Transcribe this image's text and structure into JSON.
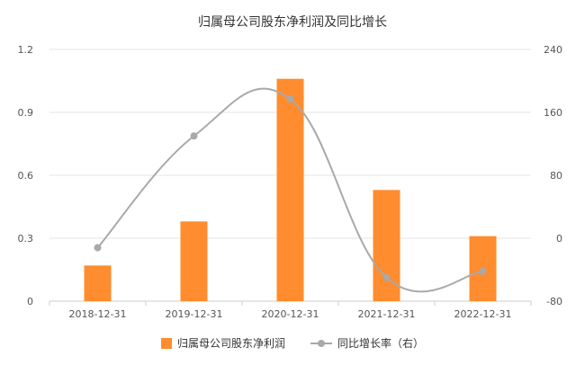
{
  "chart_data": {
    "type": "bar",
    "title": "归属母公司股东净利润及同比增长",
    "categories": [
      "2018-12-31",
      "2019-12-31",
      "2020-12-31",
      "2021-12-31",
      "2022-12-31"
    ],
    "series": [
      {
        "name": "归属母公司股东净利润",
        "type": "bar",
        "axis": "left",
        "color": "#ff8c2e",
        "values": [
          0.17,
          0.38,
          1.06,
          0.53,
          0.31
        ]
      },
      {
        "name": "同比增长率（右）",
        "type": "line",
        "axis": "right",
        "color": "#a9a9a9",
        "values": [
          -12,
          130,
          177,
          -50,
          -42
        ]
      }
    ],
    "y_left": {
      "ylim": [
        0,
        1.2
      ],
      "ticks": [
        "0",
        "0.3",
        "0.6",
        "0.9",
        "1.2"
      ]
    },
    "y_right": {
      "ylim": [
        -80,
        240
      ],
      "ticks": [
        "-80",
        "0",
        "80",
        "160",
        "240"
      ]
    },
    "grid": true,
    "legend_position": "bottom"
  }
}
